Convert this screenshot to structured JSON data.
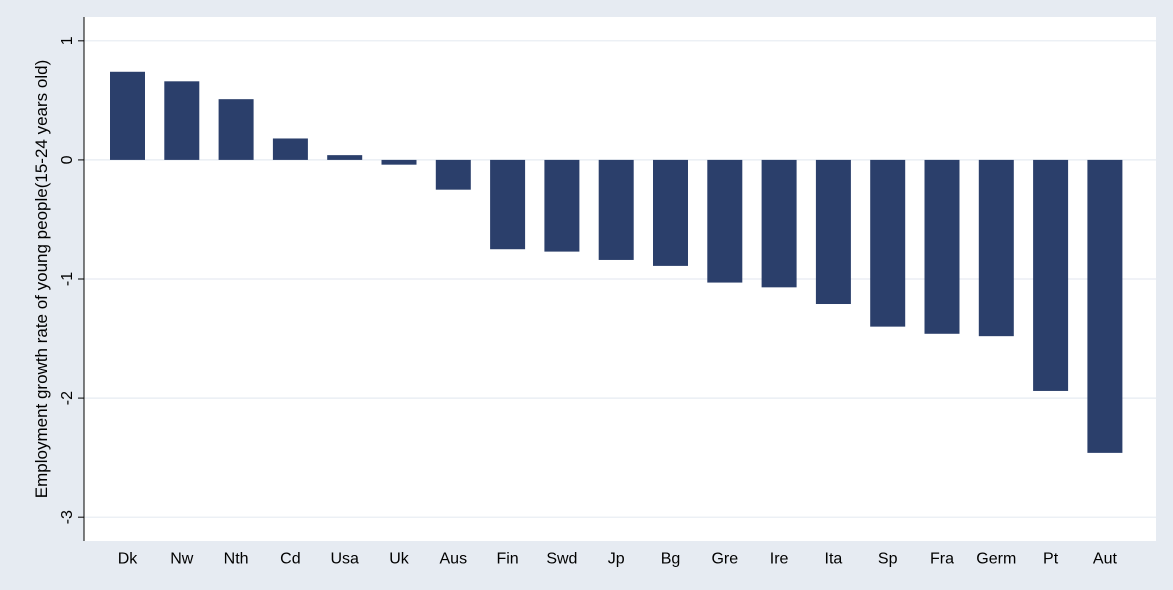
{
  "chart_data": {
    "type": "bar",
    "title": "",
    "xlabel": "",
    "ylabel": "Employment growth rate of young people(15-24 years old)",
    "ylim": [
      -3.2,
      1.2
    ],
    "yticks": [
      1,
      0,
      -1,
      -2,
      -3
    ],
    "grid": true,
    "legend": "none",
    "categories": [
      "Dk",
      "Nw",
      "Nth",
      "Cd",
      "Usa",
      "Uk",
      "Aus",
      "Fin",
      "Swd",
      "Jp",
      "Bg",
      "Gre",
      "Ire",
      "Ita",
      "Sp",
      "Fra",
      "Germ",
      "Pt",
      "Aut"
    ],
    "values": [
      0.74,
      0.66,
      0.51,
      0.18,
      0.04,
      -0.04,
      -0.25,
      -0.75,
      -0.77,
      -0.84,
      -0.89,
      -1.03,
      -1.07,
      -1.21,
      -1.4,
      -1.46,
      -1.48,
      -1.94,
      -2.46
    ],
    "bar_color": "#2b3f6b",
    "plot_background": "#ffffff",
    "outer_background": "#e6ebf2",
    "grid_color": "#e6ebf2"
  }
}
